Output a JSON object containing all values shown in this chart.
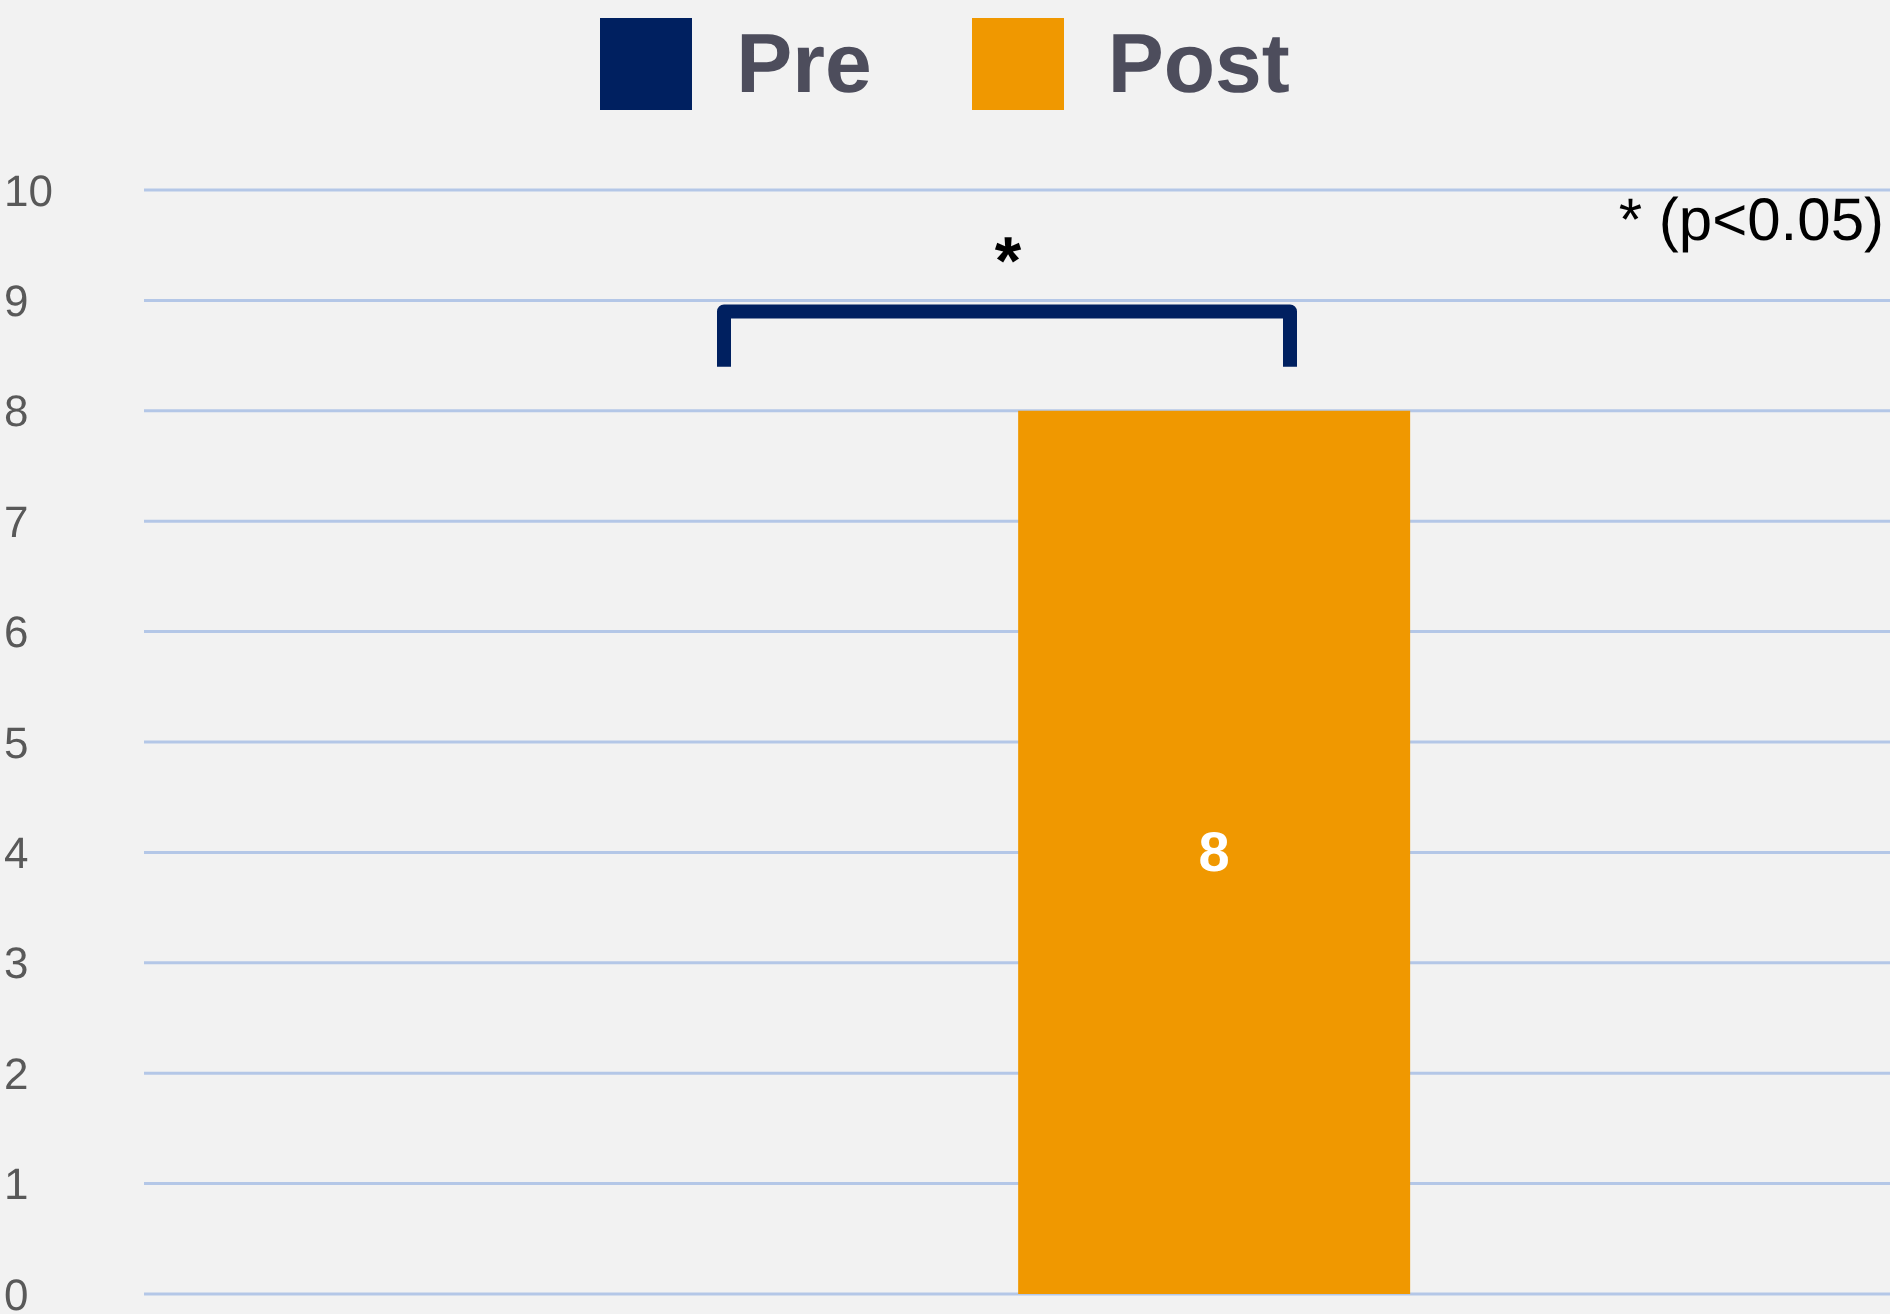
{
  "chart_data": {
    "type": "bar",
    "categories": [
      null
    ],
    "series": [
      {
        "name": "Pre",
        "color": "#002060",
        "values": [
          0
        ],
        "value_labels": [
          null
        ]
      },
      {
        "name": "Post",
        "color": "#f09800",
        "values": [
          8
        ],
        "value_labels": [
          "8"
        ]
      }
    ],
    "ylim": [
      0,
      10
    ],
    "yticks": [
      0,
      1,
      2,
      3,
      4,
      5,
      6,
      7,
      8,
      9,
      10
    ],
    "grid": "y",
    "legend": "top",
    "tick_labels": "y",
    "annotations": [
      "*",
      "* (p<0.05)"
    ]
  }
}
